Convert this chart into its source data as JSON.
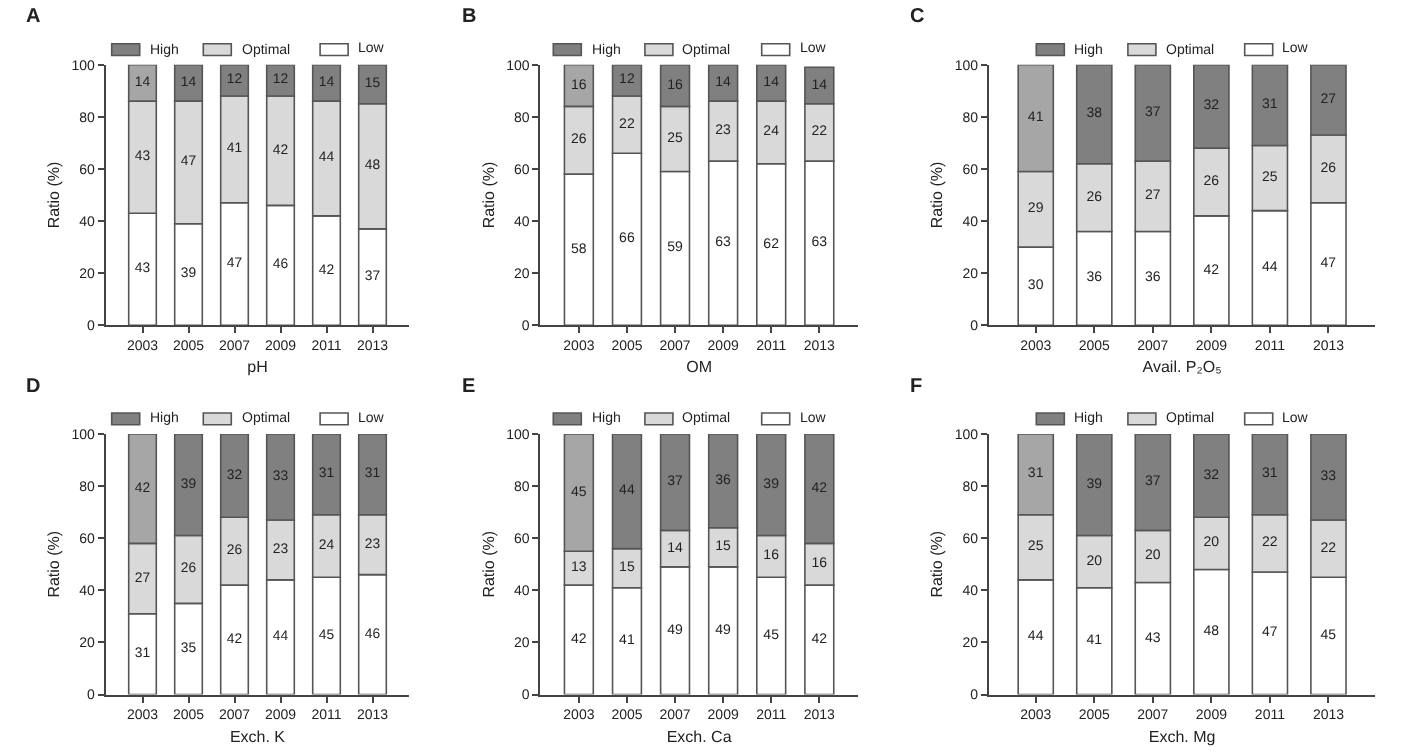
{
  "chart_data": [
    {
      "type": "bar",
      "title": "A",
      "xlabel": "pH",
      "ylabel": "Ratio (%)",
      "categories": [
        "2003",
        "2005",
        "2007",
        "2009",
        "2011",
        "2013"
      ],
      "stacked": true,
      "data_labels": true,
      "legend": "top",
      "ylim": [
        0,
        100
      ],
      "yticks": [
        0,
        20,
        40,
        60,
        80,
        100
      ],
      "series": [
        {
          "name": "Low",
          "color": "#ffffff",
          "values": [
            43,
            39,
            47,
            46,
            42,
            37
          ]
        },
        {
          "name": "Optimal",
          "color": "#d9d9d9",
          "values": [
            43,
            47,
            41,
            42,
            44,
            48
          ]
        },
        {
          "name": "High",
          "color": "#808080",
          "colors": [
            "#a6a6a6",
            "#808080",
            "#808080",
            "#808080",
            "#808080",
            "#808080"
          ],
          "values": [
            14,
            14,
            12,
            12,
            14,
            15
          ]
        }
      ]
    },
    {
      "type": "bar",
      "title": "B",
      "xlabel": "OM",
      "ylabel": "Ratio (%)",
      "categories": [
        "2003",
        "2005",
        "2007",
        "2009",
        "2011",
        "2013"
      ],
      "stacked": true,
      "data_labels": true,
      "legend": "top",
      "ylim": [
        0,
        100
      ],
      "yticks": [
        0,
        20,
        40,
        60,
        80,
        100
      ],
      "series": [
        {
          "name": "Low",
          "color": "#ffffff",
          "values": [
            58,
            66,
            59,
            63,
            62,
            63
          ]
        },
        {
          "name": "Optimal",
          "color": "#d9d9d9",
          "values": [
            26,
            22,
            25,
            23,
            24,
            22
          ]
        },
        {
          "name": "High",
          "color": "#808080",
          "colors": [
            "#a6a6a6",
            "#808080",
            "#808080",
            "#808080",
            "#808080",
            "#808080"
          ],
          "values": [
            16,
            12,
            16,
            14,
            14,
            14
          ]
        }
      ]
    },
    {
      "type": "bar",
      "title": "C",
      "xlabel": "Avail. P₂O₅",
      "ylabel": "Ratio (%)",
      "categories": [
        "2003",
        "2005",
        "2007",
        "2009",
        "2011",
        "2013"
      ],
      "stacked": true,
      "data_labels": true,
      "legend": "top",
      "ylim": [
        0,
        100
      ],
      "yticks": [
        0,
        20,
        40,
        60,
        80,
        100
      ],
      "series": [
        {
          "name": "Low",
          "color": "#ffffff",
          "values": [
            30,
            36,
            36,
            42,
            44,
            47
          ]
        },
        {
          "name": "Optimal",
          "color": "#d9d9d9",
          "values": [
            29,
            26,
            27,
            26,
            25,
            26
          ]
        },
        {
          "name": "High",
          "color": "#808080",
          "colors": [
            "#a6a6a6",
            "#808080",
            "#808080",
            "#808080",
            "#808080",
            "#808080"
          ],
          "values": [
            41,
            38,
            37,
            32,
            31,
            27
          ]
        }
      ]
    },
    {
      "type": "bar",
      "title": "D",
      "xlabel": "Exch. K",
      "ylabel": "Ratio (%)",
      "categories": [
        "2003",
        "2005",
        "2007",
        "2009",
        "2011",
        "2013"
      ],
      "stacked": true,
      "data_labels": true,
      "legend": "top",
      "ylim": [
        0,
        100
      ],
      "yticks": [
        0,
        20,
        40,
        60,
        80,
        100
      ],
      "series": [
        {
          "name": "Low",
          "color": "#ffffff",
          "values": [
            31,
            35,
            42,
            44,
            45,
            46
          ]
        },
        {
          "name": "Optimal",
          "color": "#d9d9d9",
          "values": [
            27,
            26,
            26,
            23,
            24,
            23
          ]
        },
        {
          "name": "High",
          "color": "#808080",
          "colors": [
            "#a6a6a6",
            "#808080",
            "#808080",
            "#808080",
            "#808080",
            "#808080"
          ],
          "values": [
            42,
            39,
            32,
            33,
            31,
            31
          ]
        }
      ]
    },
    {
      "type": "bar",
      "title": "E",
      "xlabel": "Exch. Ca",
      "ylabel": "Ratio (%)",
      "categories": [
        "2003",
        "2005",
        "2007",
        "2009",
        "2011",
        "2013"
      ],
      "stacked": true,
      "data_labels": true,
      "legend": "top",
      "ylim": [
        0,
        100
      ],
      "yticks": [
        0,
        20,
        40,
        60,
        80,
        100
      ],
      "series": [
        {
          "name": "Low",
          "color": "#ffffff",
          "values": [
            42,
            41,
            49,
            49,
            45,
            42
          ]
        },
        {
          "name": "Optimal",
          "color": "#d9d9d9",
          "values": [
            13,
            15,
            14,
            15,
            16,
            16
          ]
        },
        {
          "name": "High",
          "color": "#808080",
          "colors": [
            "#a6a6a6",
            "#808080",
            "#808080",
            "#808080",
            "#808080",
            "#808080"
          ],
          "values": [
            45,
            44,
            37,
            36,
            39,
            42
          ]
        }
      ]
    },
    {
      "type": "bar",
      "title": "F",
      "xlabel": "Exch. Mg",
      "ylabel": "Ratio (%)",
      "categories": [
        "2003",
        "2005",
        "2007",
        "2009",
        "2011",
        "2013"
      ],
      "stacked": true,
      "data_labels": true,
      "legend": "top",
      "ylim": [
        0,
        100
      ],
      "yticks": [
        0,
        20,
        40,
        60,
        80,
        100
      ],
      "series": [
        {
          "name": "Low",
          "color": "#ffffff",
          "values": [
            44,
            41,
            43,
            48,
            47,
            45
          ]
        },
        {
          "name": "Optimal",
          "color": "#d9d9d9",
          "values": [
            25,
            20,
            20,
            20,
            22,
            22
          ]
        },
        {
          "name": "High",
          "color": "#808080",
          "colors": [
            "#a6a6a6",
            "#808080",
            "#808080",
            "#808080",
            "#808080",
            "#808080"
          ],
          "values": [
            31,
            39,
            37,
            32,
            31,
            33
          ]
        }
      ]
    }
  ]
}
